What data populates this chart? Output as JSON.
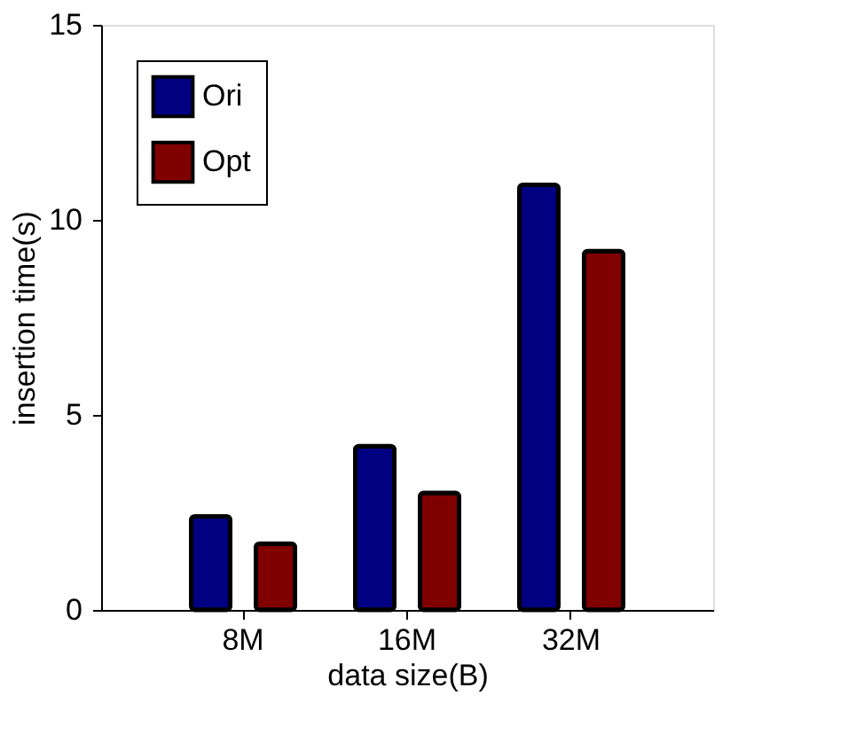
{
  "chart_data": {
    "type": "bar",
    "xlabel": "data size(B)",
    "ylabel": "insertion time(s)",
    "categories": [
      "8M",
      "16M",
      "32M"
    ],
    "series": [
      {
        "name": "Ori",
        "color": "#000080",
        "values": [
          2.4,
          4.2,
          10.9
        ]
      },
      {
        "name": "Opt",
        "color": "#800000",
        "values": [
          1.7,
          3.0,
          9.2
        ]
      }
    ],
    "ylim": [
      0,
      15
    ],
    "yticks": [
      0,
      5,
      10,
      15
    ],
    "grid": false,
    "legend": "top left"
  }
}
